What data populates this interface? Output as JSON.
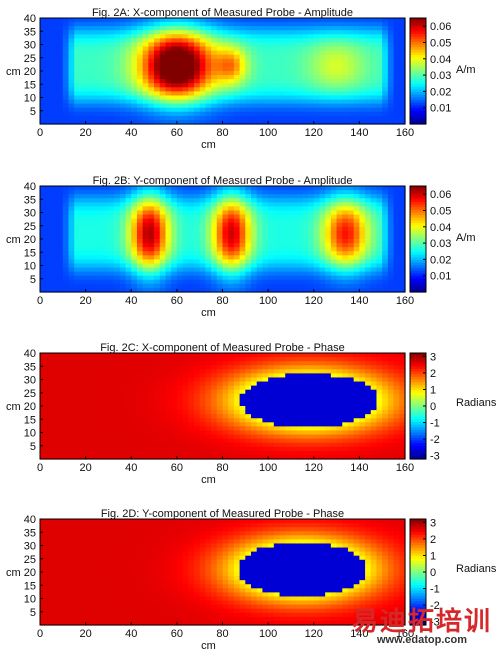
{
  "colors": {
    "colormap": [
      "#00008f",
      "#0000ff",
      "#0080ff",
      "#00ffff",
      "#80ff80",
      "#ffff00",
      "#ff8000",
      "#ff0000",
      "#800000"
    ],
    "phase_blue": "#2a4bd4",
    "watermark_red": "#d62828"
  },
  "watermark": {
    "chinese": "易迪拓培训",
    "url": "www.edatop.com"
  },
  "chart_data": [
    {
      "type": "heatmap",
      "title": "Fig. 2A: X-component of Measured Probe - Amplitude",
      "xlabel": "cm",
      "ylabel": "cm",
      "colorbar_label": "A/m",
      "xlim": [
        0,
        160
      ],
      "ylim": [
        0,
        40
      ],
      "xticks": [
        "0",
        "20",
        "40",
        "60",
        "80",
        "100",
        "120",
        "140",
        "160"
      ],
      "yticks": [
        "5",
        "10",
        "15",
        "20",
        "25",
        "30",
        "35",
        "40"
      ],
      "clim": [
        0.0,
        0.065
      ],
      "cticks": [
        "0.01",
        "0.02",
        "0.03",
        "0.04",
        "0.05",
        "0.06"
      ],
      "colorscale": "jet",
      "field": {
        "baseline": 0.012,
        "band": {
          "x_range": [
            10,
            155
          ],
          "y_center": 22,
          "y_half_width": 14,
          "value": 0.028
        },
        "hotspots": [
          {
            "x": 60,
            "y": 22,
            "sx": 11,
            "sy": 9,
            "amplitude": 0.048
          },
          {
            "x": 84,
            "y": 22,
            "sx": 5,
            "sy": 5,
            "amplitude": 0.018
          },
          {
            "x": 130,
            "y": 22,
            "sx": 9,
            "sy": 7,
            "amplitude": 0.01
          }
        ]
      }
    },
    {
      "type": "heatmap",
      "title": "Fig. 2B: Y-component of Measured Probe - Amplitude",
      "xlabel": "cm",
      "ylabel": "cm",
      "colorbar_label": "A/m",
      "xlim": [
        0,
        160
      ],
      "ylim": [
        0,
        40
      ],
      "xticks": [
        "0",
        "20",
        "40",
        "60",
        "80",
        "100",
        "120",
        "140",
        "160"
      ],
      "yticks": [
        "5",
        "10",
        "15",
        "20",
        "25",
        "30",
        "35",
        "40"
      ],
      "clim": [
        0.0,
        0.065
      ],
      "cticks": [
        "0.01",
        "0.02",
        "0.03",
        "0.04",
        "0.05",
        "0.06"
      ],
      "colorscale": "jet",
      "field": {
        "baseline": 0.012,
        "band": {
          "x_range": [
            10,
            155
          ],
          "y_center": 22,
          "y_half_width": 14,
          "value": 0.026
        },
        "hotspots": [
          {
            "x": 48,
            "y": 22,
            "sx": 6,
            "sy": 10,
            "amplitude": 0.036
          },
          {
            "x": 84,
            "y": 22,
            "sx": 6,
            "sy": 10,
            "amplitude": 0.034
          },
          {
            "x": 134,
            "y": 22,
            "sx": 7,
            "sy": 9,
            "amplitude": 0.03
          }
        ]
      }
    },
    {
      "type": "heatmap",
      "title": "Fig. 2C: X-component of Measured Probe - Phase",
      "xlabel": "cm",
      "ylabel": "cm",
      "colorbar_label": "Radians",
      "xlim": [
        0,
        160
      ],
      "ylim": [
        0,
        40
      ],
      "xticks": [
        "0",
        "20",
        "40",
        "60",
        "80",
        "100",
        "120",
        "140",
        "160"
      ],
      "yticks": [
        "5",
        "10",
        "15",
        "20",
        "25",
        "30",
        "35",
        "40"
      ],
      "clim": [
        -3.2,
        3.2
      ],
      "cticks": [
        "3",
        "2",
        "1",
        "0",
        "-1",
        "-2",
        "-3"
      ],
      "colorscale": "jet",
      "field": {
        "baseline": 2.6,
        "blobs": [
          {
            "x": 118,
            "y": 22,
            "sx": 24,
            "sy": 8,
            "value": -2.7
          }
        ]
      }
    },
    {
      "type": "heatmap",
      "title": "Fig. 2D: Y-component of Measured Probe - Phase",
      "xlabel": "cm",
      "ylabel": "cm",
      "colorbar_label": "Radians",
      "xlim": [
        0,
        160
      ],
      "ylim": [
        0,
        40
      ],
      "xticks": [
        "0",
        "20",
        "40",
        "60",
        "80",
        "100",
        "120",
        "140",
        "160"
      ],
      "yticks": [
        "5",
        "10",
        "15",
        "20",
        "25",
        "30",
        "35",
        "40"
      ],
      "clim": [
        -3.2,
        3.2
      ],
      "cticks": [
        "3",
        "2",
        "1",
        "0",
        "-1",
        "-2",
        "-3"
      ],
      "colorscale": "jet",
      "field": {
        "baseline": 2.6,
        "blobs": [
          {
            "x": 115,
            "y": 21,
            "sx": 22,
            "sy": 8,
            "value": -2.7
          }
        ]
      }
    }
  ]
}
